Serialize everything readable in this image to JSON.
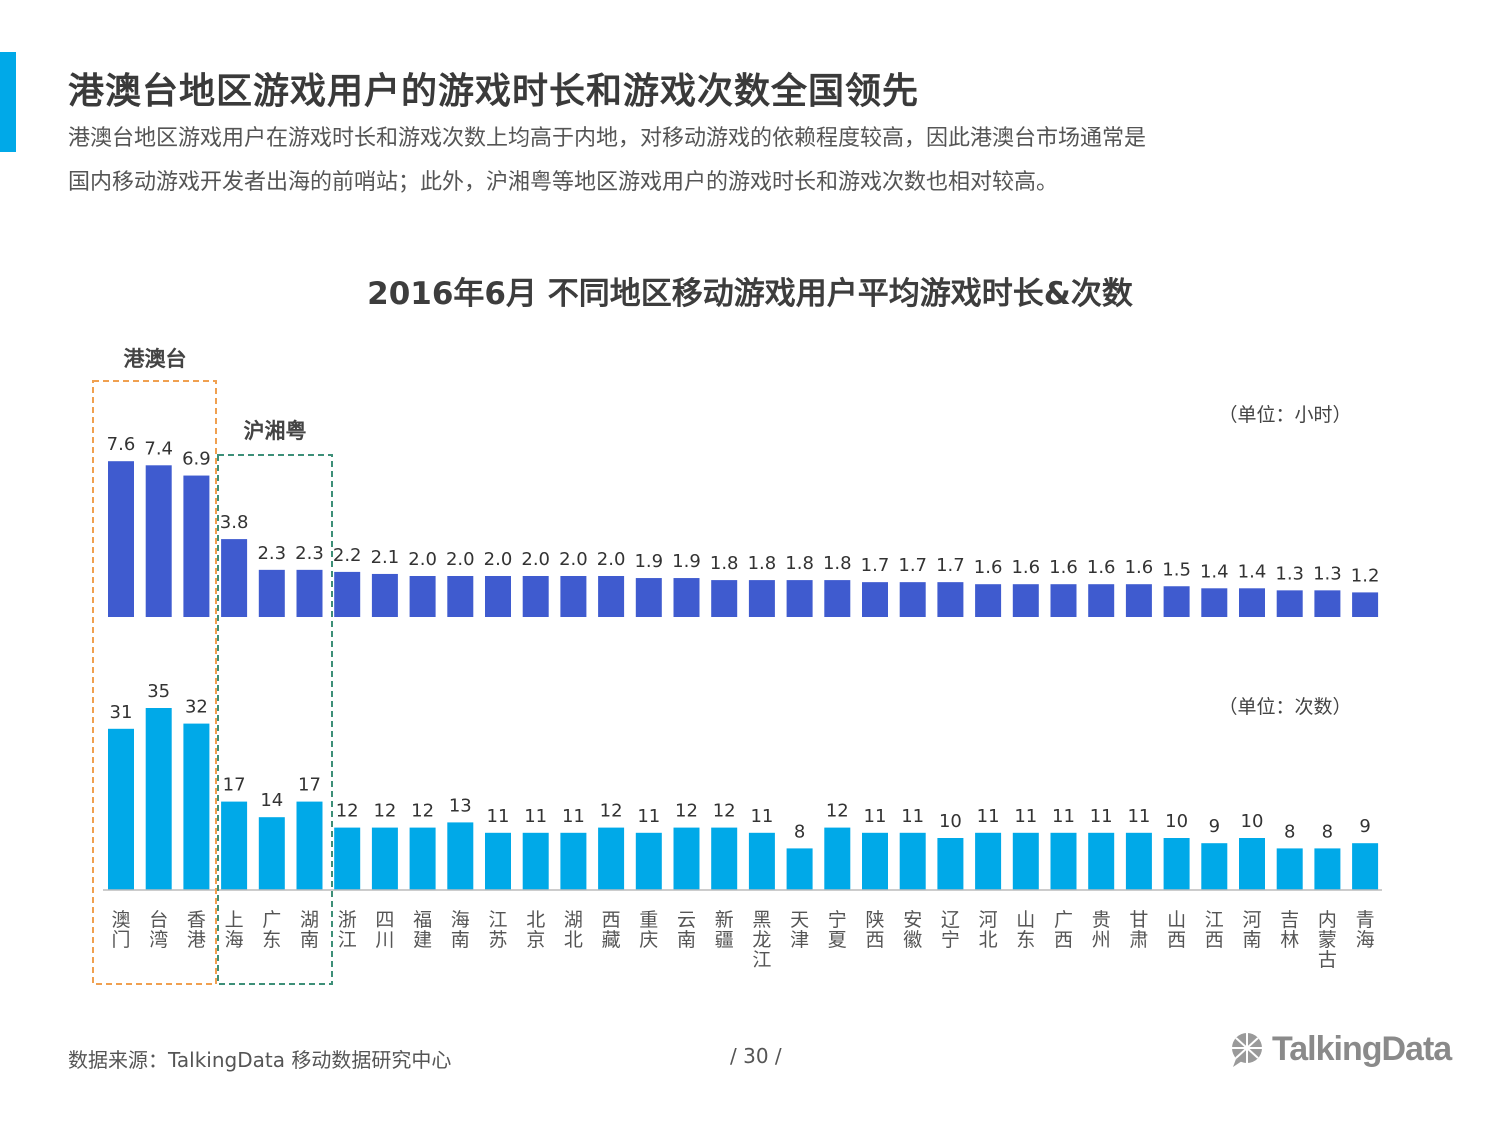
{
  "header": {
    "title": "港澳台地区游戏用户的游戏时长和游戏次数全国领先",
    "subtitle_line1": "港澳台地区游戏用户在游戏时长和游戏次数上均高于内地，对移动游戏的依赖程度较高，因此港澳台市场通常是",
    "subtitle_line2": "国内移动游戏开发者出海的前哨站；此外，沪湘粤等地区游戏用户的游戏时长和游戏次数也相对较高。"
  },
  "chart_data": {
    "type": "bar",
    "title": "2016年6月 不同地区移动游戏用户平均游戏时长&次数",
    "categories": [
      "澳门",
      "台湾",
      "香港",
      "上海",
      "广东",
      "湖南",
      "浙江",
      "四川",
      "福建",
      "海南",
      "江苏",
      "北京",
      "湖北",
      "西藏",
      "重庆",
      "云南",
      "新疆",
      "黑龙江",
      "天津",
      "宁夏",
      "陕西",
      "安徽",
      "辽宁",
      "河北",
      "山东",
      "广西",
      "贵州",
      "甘肃",
      "山西",
      "江西",
      "河南",
      "吉林",
      "内蒙古",
      "青海"
    ],
    "series": [
      {
        "unit_label": "（单位：小时）",
        "color": "#3f5bcf",
        "values": [
          7.6,
          7.4,
          6.9,
          3.8,
          2.3,
          2.3,
          2.2,
          2.1,
          2.0,
          2.0,
          2.0,
          2.0,
          2.0,
          2.0,
          1.9,
          1.9,
          1.8,
          1.8,
          1.8,
          1.8,
          1.7,
          1.7,
          1.7,
          1.6,
          1.6,
          1.6,
          1.6,
          1.6,
          1.5,
          1.4,
          1.4,
          1.3,
          1.3,
          1.2
        ],
        "labels": [
          "7.6",
          "7.4",
          "6.9",
          "3.8",
          "2.3",
          "2.3",
          "2.2",
          "2.1",
          "2.0",
          "2.0",
          "2.0",
          "2.0",
          "2.0",
          "2.0",
          "1.9",
          "1.9",
          "1.8",
          "1.8",
          "1.8",
          "1.8",
          "1.7",
          "1.7",
          "1.7",
          "1.6",
          "1.6",
          "1.6",
          "1.6",
          "1.6",
          "1.5",
          "1.4",
          "1.4",
          "1.3",
          "1.3",
          "1.2"
        ]
      },
      {
        "unit_label": "（单位：次数）",
        "color": "#00a9e8",
        "values": [
          31,
          35,
          32,
          17,
          14,
          17,
          12,
          12,
          12,
          13,
          11,
          11,
          11,
          12,
          11,
          12,
          12,
          11,
          8,
          12,
          11,
          11,
          10,
          11,
          11,
          11,
          11,
          11,
          10,
          9,
          10,
          8,
          8,
          9
        ],
        "labels": [
          "31",
          "35",
          "32",
          "17",
          "14",
          "17",
          "12",
          "12",
          "12",
          "13",
          "11",
          "11",
          "11",
          "12",
          "11",
          "12",
          "12",
          "11",
          "8",
          "12",
          "11",
          "11",
          "10",
          "11",
          "11",
          "11",
          "11",
          "11",
          "10",
          "9",
          "10",
          "8",
          "8",
          "9"
        ]
      }
    ],
    "groups": [
      {
        "label": "港澳台",
        "color": "#f0a050"
      },
      {
        "label": "沪湘粤",
        "color": "#3d8f78"
      }
    ]
  },
  "footer": {
    "source": "数据来源：TalkingData 移动数据研究中心",
    "page": "/ 30 /",
    "logo_text": "TalkingData"
  }
}
